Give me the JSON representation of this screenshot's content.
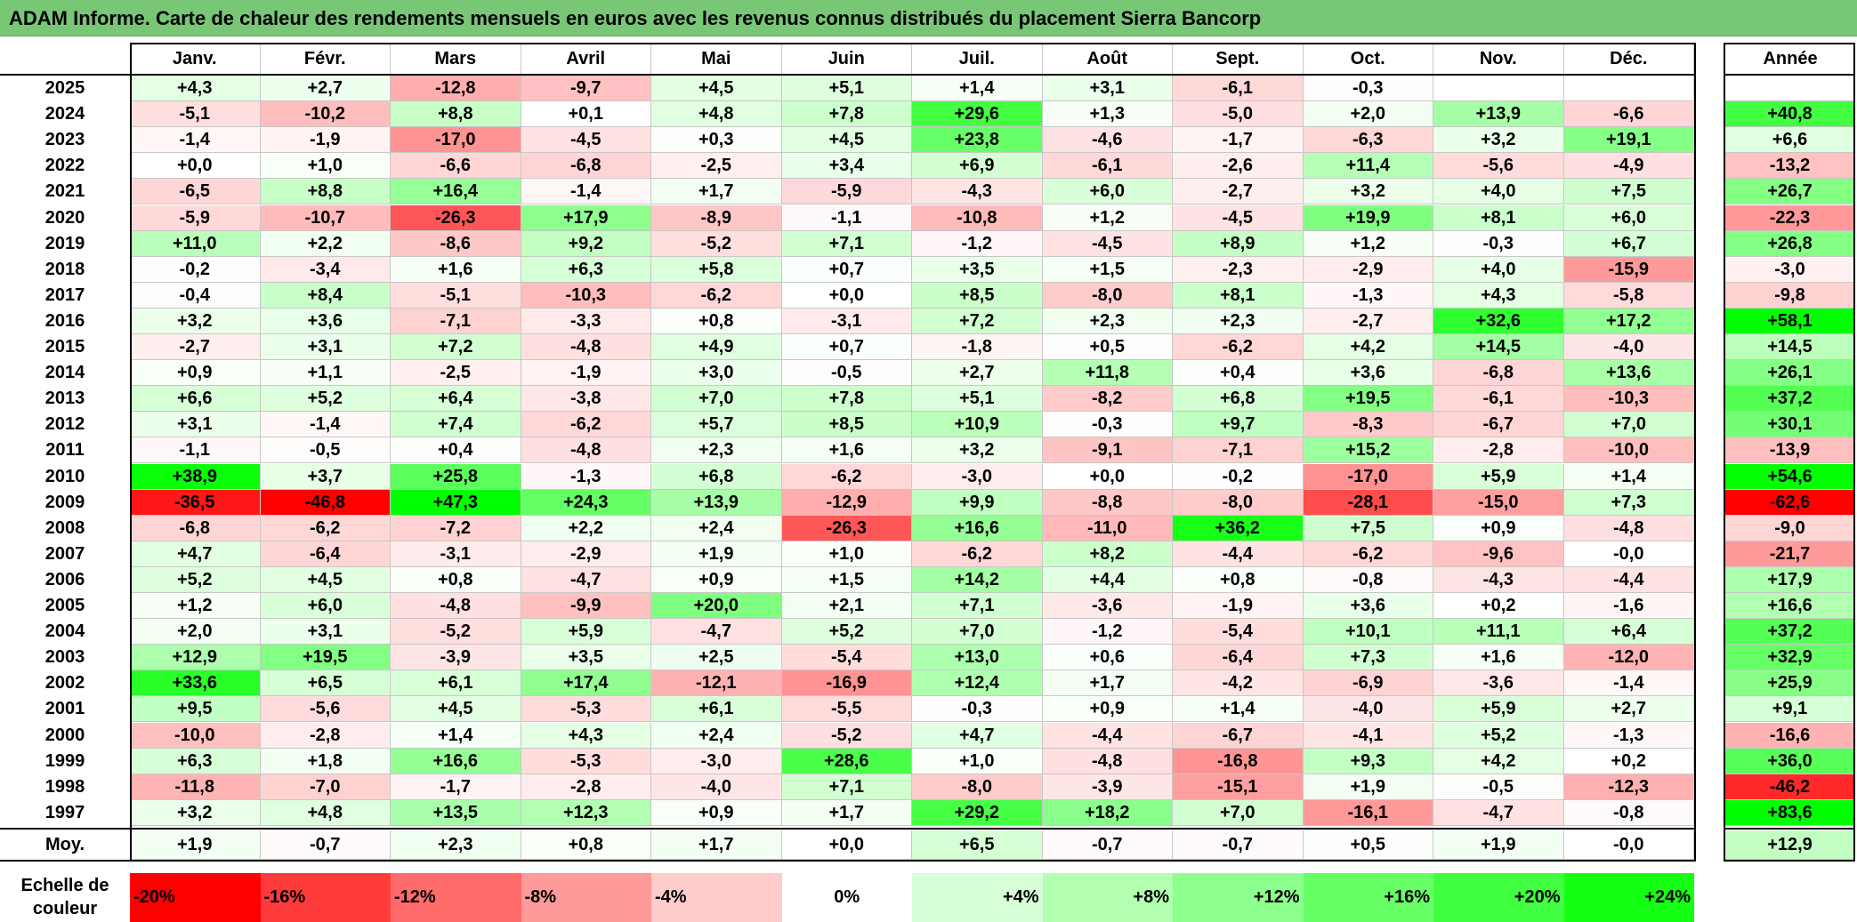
{
  "title": "ADAM Informe. Carte de chaleur des rendements mensuels en euros avec les revenus connus distribués du placement Sierra Bancorp",
  "colors": {
    "title_bg": "#77c777",
    "negative_max": "#ff0000",
    "positive_max": "#00ff00",
    "neutral": "#ffffff"
  },
  "chart_data": {
    "type": "heatmap",
    "title": "ADAM Informe. Carte de chaleur des rendements mensuels en euros avec les revenus connus distribués du placement Sierra Bancorp",
    "columns": [
      "Janv.",
      "Févr.",
      "Mars",
      "Avril",
      "Mai",
      "Juin",
      "Juil.",
      "Août",
      "Sept.",
      "Oct.",
      "Nov.",
      "Déc."
    ],
    "year_header": "Année",
    "rows": [
      {
        "year": "2025",
        "values": [
          "+4,3",
          "+2,7",
          "-12,8",
          "-9,7",
          "+4,5",
          "+5,1",
          "+1,4",
          "+3,1",
          "-6,1",
          "-0,3",
          "",
          ""
        ],
        "annual": ""
      },
      {
        "year": "2024",
        "values": [
          "-5,1",
          "-10,2",
          "+8,8",
          "+0,1",
          "+4,8",
          "+7,8",
          "+29,6",
          "+1,3",
          "-5,0",
          "+2,0",
          "+13,9",
          "-6,6"
        ],
        "annual": "+40,8"
      },
      {
        "year": "2023",
        "values": [
          "-1,4",
          "-1,9",
          "-17,0",
          "-4,5",
          "+0,3",
          "+4,5",
          "+23,8",
          "-4,6",
          "-1,7",
          "-6,3",
          "+3,2",
          "+19,1"
        ],
        "annual": "+6,6"
      },
      {
        "year": "2022",
        "values": [
          "+0,0",
          "+1,0",
          "-6,6",
          "-6,8",
          "-2,5",
          "+3,4",
          "+6,9",
          "-6,1",
          "-2,6",
          "+11,4",
          "-5,6",
          "-4,9"
        ],
        "annual": "-13,2"
      },
      {
        "year": "2021",
        "values": [
          "-6,5",
          "+8,8",
          "+16,4",
          "-1,4",
          "+1,7",
          "-5,9",
          "-4,3",
          "+6,0",
          "-2,7",
          "+3,2",
          "+4,0",
          "+7,5"
        ],
        "annual": "+26,7"
      },
      {
        "year": "2020",
        "values": [
          "-5,9",
          "-10,7",
          "-26,3",
          "+17,9",
          "-8,9",
          "-1,1",
          "-10,8",
          "+1,2",
          "-4,5",
          "+19,9",
          "+8,1",
          "+6,0"
        ],
        "annual": "-22,3"
      },
      {
        "year": "2019",
        "values": [
          "+11,0",
          "+2,2",
          "-8,6",
          "+9,2",
          "-5,2",
          "+7,1",
          "-1,2",
          "-4,5",
          "+8,9",
          "+1,2",
          "-0,3",
          "+6,7"
        ],
        "annual": "+26,8"
      },
      {
        "year": "2018",
        "values": [
          "-0,2",
          "-3,4",
          "+1,6",
          "+6,3",
          "+5,8",
          "+0,7",
          "+3,5",
          "+1,5",
          "-2,3",
          "-2,9",
          "+4,0",
          "-15,9"
        ],
        "annual": "-3,0"
      },
      {
        "year": "2017",
        "values": [
          "-0,4",
          "+8,4",
          "-5,1",
          "-10,3",
          "-6,2",
          "+0,0",
          "+8,5",
          "-8,0",
          "+8,1",
          "-1,3",
          "+4,3",
          "-5,8"
        ],
        "annual": "-9,8"
      },
      {
        "year": "2016",
        "values": [
          "+3,2",
          "+3,6",
          "-7,1",
          "-3,3",
          "+0,8",
          "-3,1",
          "+7,2",
          "+2,3",
          "+2,3",
          "-2,7",
          "+32,6",
          "+17,2"
        ],
        "annual": "+58,1"
      },
      {
        "year": "2015",
        "values": [
          "-2,7",
          "+3,1",
          "+7,2",
          "-4,8",
          "+4,9",
          "+0,7",
          "-1,8",
          "+0,5",
          "-6,2",
          "+4,2",
          "+14,5",
          "-4,0"
        ],
        "annual": "+14,5"
      },
      {
        "year": "2014",
        "values": [
          "+0,9",
          "+1,1",
          "-2,5",
          "-1,9",
          "+3,0",
          "-0,5",
          "+2,7",
          "+11,8",
          "+0,4",
          "+3,6",
          "-6,8",
          "+13,6"
        ],
        "annual": "+26,1"
      },
      {
        "year": "2013",
        "values": [
          "+6,6",
          "+5,2",
          "+6,4",
          "-3,8",
          "+7,0",
          "+7,8",
          "+5,1",
          "-8,2",
          "+6,8",
          "+19,5",
          "-6,1",
          "-10,3"
        ],
        "annual": "+37,2"
      },
      {
        "year": "2012",
        "values": [
          "+3,1",
          "-1,4",
          "+7,4",
          "-6,2",
          "+5,7",
          "+8,5",
          "+10,9",
          "-0,3",
          "+9,7",
          "-8,3",
          "-6,7",
          "+7,0"
        ],
        "annual": "+30,1"
      },
      {
        "year": "2011",
        "values": [
          "-1,1",
          "-0,5",
          "+0,4",
          "-4,8",
          "+2,3",
          "+1,6",
          "+3,2",
          "-9,1",
          "-7,1",
          "+15,2",
          "-2,8",
          "-10,0"
        ],
        "annual": "-13,9"
      },
      {
        "year": "2010",
        "values": [
          "+38,9",
          "+3,7",
          "+25,8",
          "-1,3",
          "+6,8",
          "-6,2",
          "-3,0",
          "+0,0",
          "-0,2",
          "-17,0",
          "+5,9",
          "+1,4"
        ],
        "annual": "+54,6"
      },
      {
        "year": "2009",
        "values": [
          "-36,5",
          "-46,8",
          "+47,3",
          "+24,3",
          "+13,9",
          "-12,9",
          "+9,9",
          "-8,8",
          "-8,0",
          "-28,1",
          "-15,0",
          "+7,3"
        ],
        "annual": "-62,6"
      },
      {
        "year": "2008",
        "values": [
          "-6,8",
          "-6,2",
          "-7,2",
          "+2,2",
          "+2,4",
          "-26,3",
          "+16,6",
          "-11,0",
          "+36,2",
          "+7,5",
          "+0,9",
          "-4,8"
        ],
        "annual": "-9,0"
      },
      {
        "year": "2007",
        "values": [
          "+4,7",
          "-6,4",
          "-3,1",
          "-2,9",
          "+1,9",
          "+1,0",
          "-6,2",
          "+8,2",
          "-4,4",
          "-6,2",
          "-9,6",
          "-0,0"
        ],
        "annual": "-21,7"
      },
      {
        "year": "2006",
        "values": [
          "+5,2",
          "+4,5",
          "+0,8",
          "-4,7",
          "+0,9",
          "+1,5",
          "+14,2",
          "+4,4",
          "+0,8",
          "-0,8",
          "-4,3",
          "-4,4"
        ],
        "annual": "+17,9"
      },
      {
        "year": "2005",
        "values": [
          "+1,2",
          "+6,0",
          "-4,8",
          "-9,9",
          "+20,0",
          "+2,1",
          "+7,1",
          "-3,6",
          "-1,9",
          "+3,6",
          "+0,2",
          "-1,6"
        ],
        "annual": "+16,6"
      },
      {
        "year": "2004",
        "values": [
          "+2,0",
          "+3,1",
          "-5,2",
          "+5,9",
          "-4,7",
          "+5,2",
          "+7,0",
          "-1,2",
          "-5,4",
          "+10,1",
          "+11,1",
          "+6,4"
        ],
        "annual": "+37,2"
      },
      {
        "year": "2003",
        "values": [
          "+12,9",
          "+19,5",
          "-3,9",
          "+3,5",
          "+2,5",
          "-5,4",
          "+13,0",
          "+0,6",
          "-6,4",
          "+7,3",
          "+1,6",
          "-12,0"
        ],
        "annual": "+32,9"
      },
      {
        "year": "2002",
        "values": [
          "+33,6",
          "+6,5",
          "+6,1",
          "+17,4",
          "-12,1",
          "-16,9",
          "+12,4",
          "+1,7",
          "-4,2",
          "-6,9",
          "-3,6",
          "-1,4"
        ],
        "annual": "+25,9"
      },
      {
        "year": "2001",
        "values": [
          "+9,5",
          "-5,6",
          "+4,5",
          "-5,3",
          "+6,1",
          "-5,5",
          "-0,3",
          "+0,9",
          "+1,4",
          "-4,0",
          "+5,9",
          "+2,7"
        ],
        "annual": "+9,1"
      },
      {
        "year": "2000",
        "values": [
          "-10,0",
          "-2,8",
          "+1,4",
          "+4,3",
          "+2,4",
          "-5,2",
          "+4,7",
          "-4,4",
          "-6,7",
          "-4,1",
          "+5,2",
          "-1,3"
        ],
        "annual": "-16,6"
      },
      {
        "year": "1999",
        "values": [
          "+6,3",
          "+1,8",
          "+16,6",
          "-5,3",
          "-3,0",
          "+28,6",
          "+1,0",
          "-4,8",
          "-16,8",
          "+9,3",
          "+4,2",
          "+0,2"
        ],
        "annual": "+36,0"
      },
      {
        "year": "1998",
        "values": [
          "-11,8",
          "-7,0",
          "-1,7",
          "-2,8",
          "-4,0",
          "+7,1",
          "-8,0",
          "-3,9",
          "-15,1",
          "+1,9",
          "-0,5",
          "-12,3"
        ],
        "annual": "-46,2"
      },
      {
        "year": "1997",
        "values": [
          "+3,2",
          "+4,8",
          "+13,5",
          "+12,3",
          "+0,9",
          "+1,7",
          "+29,2",
          "+18,2",
          "+7,0",
          "-16,1",
          "-4,7",
          "-0,8"
        ],
        "annual": "+83,6"
      }
    ],
    "average": {
      "label": "Moy.",
      "values": [
        "+1,9",
        "-0,7",
        "+2,3",
        "+0,8",
        "+1,7",
        "+0,0",
        "+6,5",
        "-0,7",
        "-0,7",
        "+0,5",
        "+1,9",
        "-0,0"
      ],
      "annual": "+12,9"
    },
    "scale": {
      "label": "Echelle de couleur",
      "entries": [
        "-20%",
        "-16%",
        "-12%",
        "-8%",
        "-4%",
        "0%",
        "+4%",
        "+8%",
        "+12%",
        "+16%",
        "+20%",
        "+24%"
      ],
      "colors": [
        "#ff0000",
        "#ff3a3a",
        "#ff6a6a",
        "#ff9a9a",
        "#ffcccc",
        "#ffffff",
        "#d6ffd6",
        "#b2ffb2",
        "#8cff8c",
        "#66ff66",
        "#40ff40",
        "#14ff14"
      ]
    }
  }
}
